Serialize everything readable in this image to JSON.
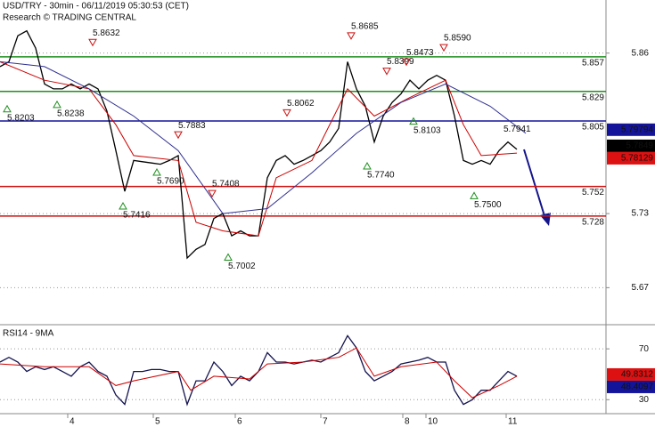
{
  "chart_data": [
    {
      "type": "line",
      "title": "USD/TRY - 30min - 06/11/2019 05:30:53 (CET)",
      "subtitle": "Research © TRADING CENTRAL",
      "xlim": [
        0,
        340
      ],
      "ylim": [
        5.64,
        5.903
      ],
      "yticks": [
        5.86,
        5.73,
        5.67
      ],
      "grid": true,
      "series": [
        {
          "color": "#000000",
          "x": [
            0,
            5,
            10,
            15,
            20,
            25,
            30,
            35,
            40,
            45,
            50,
            55,
            60,
            65,
            70,
            75,
            80,
            85,
            90,
            95,
            100,
            105,
            110,
            115,
            120,
            125,
            130,
            135,
            140,
            145,
            150,
            155,
            160,
            165,
            170,
            175,
            180,
            185,
            190,
            195,
            200,
            205,
            210,
            215,
            220,
            225,
            230,
            235,
            240,
            245,
            250,
            255,
            260,
            265,
            270,
            275,
            280,
            285,
            290
          ],
          "values": [
            5.849,
            5.853,
            5.874,
            5.878,
            5.864,
            5.835,
            5.831,
            5.831,
            5.835,
            5.831,
            5.835,
            5.831,
            5.813,
            5.781,
            5.748,
            5.773,
            5.772,
            5.771,
            5.77,
            5.773,
            5.777,
            5.694,
            5.701,
            5.705,
            5.726,
            5.73,
            5.712,
            5.716,
            5.712,
            5.712,
            5.759,
            5.773,
            5.777,
            5.77,
            5.773,
            5.777,
            5.781,
            5.788,
            5.799,
            5.853,
            5.831,
            5.817,
            5.788,
            5.809,
            5.82,
            5.827,
            5.838,
            5.831,
            5.838,
            5.842,
            5.838,
            5.809,
            5.773,
            5.77,
            5.773,
            5.77,
            5.781,
            5.788,
            5.782
          ]
        },
        {
          "color": "#cc0000",
          "x": [
            0,
            25,
            50,
            65,
            75,
            100,
            110,
            125,
            145,
            155,
            175,
            195,
            210,
            230,
            250,
            260,
            270,
            290
          ],
          "values": [
            5.853,
            5.838,
            5.831,
            5.802,
            5.777,
            5.773,
            5.723,
            5.716,
            5.712,
            5.759,
            5.773,
            5.831,
            5.809,
            5.824,
            5.838,
            5.802,
            5.777,
            5.779
          ]
        },
        {
          "color": "#303090",
          "x": [
            0,
            25,
            50,
            75,
            100,
            125,
            150,
            175,
            200,
            225,
            250,
            275,
            295
          ],
          "values": [
            5.853,
            5.849,
            5.831,
            5.809,
            5.781,
            5.73,
            5.734,
            5.763,
            5.795,
            5.82,
            5.835,
            5.817,
            5.795
          ]
        }
      ],
      "levels": [
        {
          "value": 5.857,
          "color": "#1f8f1f"
        },
        {
          "value": 5.829,
          "color": "#1f8f1f"
        },
        {
          "value": 5.805,
          "color": "#14149a"
        },
        {
          "value": 5.752,
          "color": "#cc1111"
        },
        {
          "value": 5.728,
          "color": "#cc1111"
        }
      ],
      "annotations": [
        {
          "kind": "low",
          "x": 4,
          "value": 5.8203,
          "label": "5.8203"
        },
        {
          "kind": "low",
          "x": 32,
          "value": 5.8238,
          "label": "5.8238"
        },
        {
          "kind": "high",
          "x": 52,
          "value": 5.8632,
          "label": "5.8632"
        },
        {
          "kind": "low",
          "x": 69,
          "value": 5.7416,
          "label": "5.7416"
        },
        {
          "kind": "low",
          "x": 88,
          "value": 5.769,
          "label": "5.7690"
        },
        {
          "kind": "high",
          "x": 100,
          "value": 5.7883,
          "label": "5.7883"
        },
        {
          "kind": "high",
          "x": 119,
          "value": 5.7408,
          "label": "5.7408"
        },
        {
          "kind": "low",
          "x": 128,
          "value": 5.7002,
          "label": "5.7002"
        },
        {
          "kind": "high",
          "x": 161,
          "value": 5.8062,
          "label": "5.8062"
        },
        {
          "kind": "high",
          "x": 197,
          "value": 5.8685,
          "label": "5.8685"
        },
        {
          "kind": "low",
          "x": 206,
          "value": 5.774,
          "label": "5.7740"
        },
        {
          "kind": "high",
          "x": 217,
          "value": 5.8399,
          "label": "5.8399"
        },
        {
          "kind": "high",
          "x": 228,
          "value": 5.8473,
          "label": "5.8473"
        },
        {
          "kind": "low",
          "x": 232,
          "value": 5.8103,
          "label": "5.8103"
        },
        {
          "kind": "high",
          "x": 249,
          "value": 5.859,
          "label": "5.8590"
        },
        {
          "kind": "low",
          "x": 266,
          "value": 5.75,
          "label": "5.7500"
        },
        {
          "kind": "level",
          "x": 290,
          "value": 5.7941,
          "label": "5.7941"
        }
      ],
      "price_tags": [
        {
          "value": 5.79794,
          "label": "5.79794",
          "color": "#14149a"
        },
        {
          "value": 5.7849,
          "label": "5.7849",
          "color": "#000000"
        },
        {
          "value": 5.78129,
          "label": "5.78129",
          "color": "#dd1111"
        }
      ]
    },
    {
      "type": "line",
      "title": "RSI14 - 9MA",
      "xlim": [
        0,
        340
      ],
      "ylim": [
        19,
        89
      ],
      "yticks": [
        70,
        30
      ],
      "grid": true,
      "xticks": [
        {
          "value": 38,
          "label": "4"
        },
        {
          "value": 86,
          "label": "5"
        },
        {
          "value": 132,
          "label": "6"
        },
        {
          "value": 180,
          "label": "7"
        },
        {
          "value": 226,
          "label": "8"
        },
        {
          "value": 239,
          "label": "10"
        },
        {
          "value": 284,
          "label": "11"
        }
      ],
      "series": [
        {
          "color": "#141450",
          "x": [
            0,
            5,
            10,
            15,
            20,
            25,
            30,
            35,
            40,
            45,
            50,
            55,
            60,
            65,
            70,
            75,
            80,
            85,
            90,
            95,
            100,
            105,
            110,
            115,
            120,
            125,
            130,
            135,
            140,
            145,
            150,
            155,
            160,
            165,
            170,
            175,
            180,
            185,
            190,
            195,
            200,
            205,
            210,
            215,
            220,
            225,
            230,
            235,
            240,
            245,
            250,
            255,
            260,
            265,
            270,
            275,
            280,
            285,
            290
          ],
          "values": [
            59.6,
            63.3,
            59.6,
            52.2,
            55.9,
            53.7,
            55.9,
            52.2,
            48.5,
            55.9,
            59.6,
            52.2,
            48.5,
            33.7,
            26.3,
            52.2,
            52.2,
            53.7,
            53.7,
            52.2,
            52.2,
            26.3,
            44.8,
            44.8,
            59.6,
            52.2,
            41.1,
            48.5,
            44.8,
            52.2,
            67.0,
            59.6,
            59.6,
            58.1,
            59.6,
            61.1,
            59.6,
            63.3,
            67.0,
            80.4,
            70.7,
            52.2,
            44.8,
            48.5,
            52.2,
            58.1,
            59.6,
            61.1,
            63.3,
            59.6,
            59.6,
            37.4,
            26.3,
            30.0,
            37.4,
            37.4,
            44.8,
            52.2,
            48.5
          ]
        },
        {
          "color": "#cc0000",
          "x": [
            0,
            25,
            50,
            65,
            75,
            100,
            107,
            120,
            140,
            150,
            170,
            190,
            200,
            210,
            225,
            245,
            255,
            265,
            280,
            290
          ],
          "values": [
            58.1,
            55.9,
            55.9,
            41.1,
            44.8,
            52.2,
            37.4,
            48.5,
            46.3,
            58.1,
            59.6,
            63.3,
            70.7,
            48.5,
            55.9,
            59.6,
            44.8,
            31.5,
            41.1,
            48.5
          ]
        }
      ],
      "price_tags": [
        {
          "value": 49.8312,
          "label": "49.8312",
          "color": "#dd1111"
        },
        {
          "value": 48.4097,
          "label": "48.4097",
          "color": "#14149a"
        }
      ]
    }
  ]
}
